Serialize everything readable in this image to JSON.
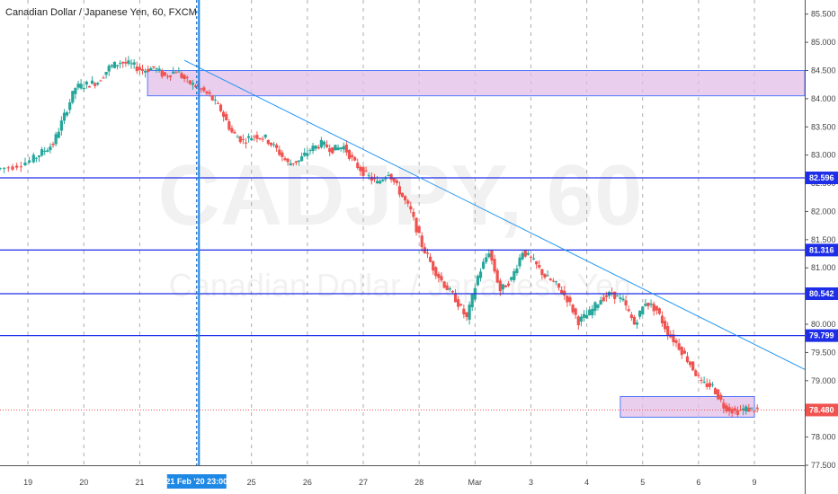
{
  "chart_data": {
    "type": "candlestick",
    "title": "Canadian Dollar / Japanese Yen, 60, FXCM",
    "watermark": {
      "symbol": "CADJPY, 60",
      "name": "Canadian Dollar / Japanese Yen"
    },
    "ylim": [
      77.5,
      85.75
    ],
    "y_ticks": [
      "85.500",
      "85.000",
      "84.500",
      "84.000",
      "83.500",
      "83.000",
      "82.500",
      "82.000",
      "81.500",
      "81.000",
      "80.500",
      "80.000",
      "79.500",
      "79.000",
      "78.500",
      "78.000",
      "77.500"
    ],
    "y_tick_values": [
      85.5,
      85.0,
      84.5,
      84.0,
      83.5,
      83.0,
      82.5,
      82.0,
      81.5,
      81.0,
      80.5,
      80.0,
      79.5,
      79.0,
      78.5,
      78.0,
      77.5
    ],
    "x_ticks": [
      {
        "label": "19",
        "t": 2.5
      },
      {
        "label": "20",
        "t": 7.5
      },
      {
        "label": "21",
        "t": 12.5
      },
      {
        "label": "25",
        "t": 22.5
      },
      {
        "label": "26",
        "t": 27.5
      },
      {
        "label": "27",
        "t": 32.5
      },
      {
        "label": "28",
        "t": 37.5
      },
      {
        "label": "Mar",
        "t": 42.5
      },
      {
        "label": "3",
        "t": 47.5
      },
      {
        "label": "4",
        "t": 52.5
      },
      {
        "label": "5",
        "t": 57.5
      },
      {
        "label": "6",
        "t": 62.5
      },
      {
        "label": "9",
        "t": 67.5
      }
    ],
    "x_range": [
      0,
      72
    ],
    "crosshair": {
      "t": 17.6,
      "label": "21 Feb '20  23:00"
    },
    "levels": [
      {
        "value": 82.596,
        "label": "82.596",
        "color": "#1e2ee6"
      },
      {
        "value": 81.316,
        "label": "81.316",
        "color": "#1e2ee6"
      },
      {
        "value": 80.542,
        "label": "80.542",
        "color": "#1e2ee6"
      },
      {
        "value": 79.799,
        "label": "79.799",
        "color": "#1e2ee6"
      }
    ],
    "current_price": {
      "value": 78.48,
      "label": "78.480",
      "color": "#ef5350"
    },
    "zones": [
      {
        "t0": 13.2,
        "t1": 72,
        "y0": 84.05,
        "y1": 84.5
      },
      {
        "t0": 55.5,
        "t1": 67.5,
        "y0": 78.35,
        "y1": 78.72
      }
    ],
    "trendline": {
      "t0": 16.5,
      "y0": 84.68,
      "t1": 72,
      "y1": 79.2
    },
    "colors": {
      "up": "#26a69a",
      "down": "#ef5350",
      "level": "#1e2ee6",
      "trend": "#2196f3",
      "zone": "#e1bee7"
    },
    "path": [
      [
        0,
        82.75
      ],
      [
        1.5,
        82.8
      ],
      [
        3,
        82.9
      ],
      [
        4,
        83.05
      ],
      [
        5,
        83.2
      ],
      [
        6,
        83.7
      ],
      [
        7,
        84.2
      ],
      [
        8,
        84.25
      ],
      [
        9,
        84.3
      ],
      [
        10,
        84.55
      ],
      [
        11,
        84.65
      ],
      [
        12,
        84.6
      ],
      [
        13,
        84.5
      ],
      [
        14,
        84.55
      ],
      [
        15,
        84.4
      ],
      [
        16,
        84.5
      ],
      [
        17,
        84.3
      ],
      [
        18,
        84.2
      ],
      [
        19,
        84.05
      ],
      [
        20,
        83.8
      ],
      [
        21,
        83.4
      ],
      [
        22,
        83.25
      ],
      [
        23,
        83.35
      ],
      [
        24,
        83.3
      ],
      [
        25,
        83.1
      ],
      [
        26,
        82.85
      ],
      [
        27,
        82.9
      ],
      [
        28,
        83.1
      ],
      [
        29,
        83.2
      ],
      [
        30,
        83.1
      ],
      [
        31,
        83.15
      ],
      [
        32,
        82.85
      ],
      [
        33,
        82.65
      ],
      [
        34,
        82.5
      ],
      [
        35,
        82.7
      ],
      [
        36,
        82.35
      ],
      [
        37,
        82.0
      ],
      [
        38,
        81.4
      ],
      [
        39,
        81.0
      ],
      [
        40,
        80.7
      ],
      [
        41,
        80.45
      ],
      [
        42,
        80.1
      ],
      [
        43,
        80.85
      ],
      [
        44,
        81.3
      ],
      [
        45,
        80.6
      ],
      [
        46,
        80.8
      ],
      [
        47,
        81.3
      ],
      [
        48,
        81.1
      ],
      [
        49,
        80.85
      ],
      [
        50,
        80.7
      ],
      [
        51,
        80.45
      ],
      [
        52,
        80.05
      ],
      [
        53,
        80.2
      ],
      [
        54,
        80.45
      ],
      [
        55,
        80.55
      ],
      [
        56,
        80.4
      ],
      [
        57,
        80.0
      ],
      [
        58,
        80.4
      ],
      [
        59,
        80.25
      ],
      [
        60,
        79.85
      ],
      [
        61,
        79.6
      ],
      [
        62,
        79.3
      ],
      [
        63,
        78.95
      ],
      [
        64,
        78.9
      ],
      [
        65,
        78.55
      ],
      [
        66,
        78.45
      ],
      [
        67,
        78.5
      ],
      [
        68,
        78.48
      ]
    ]
  }
}
